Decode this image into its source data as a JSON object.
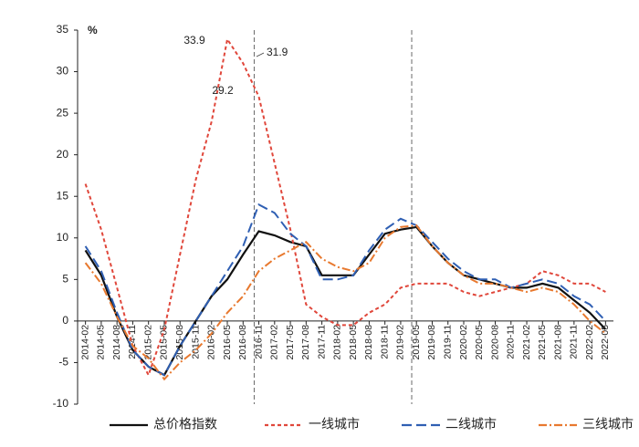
{
  "chart_data": {
    "type": "line",
    "y_unit_label": "%",
    "categories": [
      "2014-02",
      "2014-05",
      "2014-08",
      "2014-11",
      "2015-02",
      "2015-05",
      "2015-08",
      "2015-11",
      "2016-02",
      "2016-05",
      "2016-08",
      "2016-11",
      "2017-02",
      "2017-05",
      "2017-08",
      "2017-11",
      "2018-02",
      "2018-05",
      "2018-08",
      "2018-11",
      "2019-02",
      "2019-05",
      "2019-08",
      "2019-11",
      "2020-02",
      "2020-05",
      "2020-08",
      "2020-11",
      "2021-02",
      "2021-05",
      "2021-08",
      "2021-11",
      "2022-02",
      "2022-05"
    ],
    "series": [
      {
        "name": "总价格指数",
        "color": "#111111",
        "dash": "solid",
        "values": [
          8.5,
          5.5,
          0.5,
          -3.5,
          -5.5,
          -6.5,
          -3,
          0,
          3,
          5,
          8,
          10.8,
          10.3,
          9.5,
          9,
          5.5,
          5.5,
          5.5,
          8,
          10.5,
          11,
          11.3,
          9,
          7,
          5.5,
          5,
          4.5,
          4,
          4,
          4.5,
          4,
          2.5,
          1,
          -1
        ]
      },
      {
        "name": "一线城市",
        "color": "#e0473b",
        "dash": "short",
        "values": [
          16.5,
          11,
          4,
          -3,
          -6.5,
          -1,
          8,
          17,
          24,
          33.9,
          31,
          27,
          19,
          11,
          2,
          0.5,
          -0.5,
          -0.5,
          1,
          2,
          4,
          4.5,
          4.5,
          4.5,
          3.5,
          3,
          3.5,
          4,
          4.5,
          6,
          5.5,
          4.5,
          4.5,
          3.5
        ]
      },
      {
        "name": "二线城市",
        "color": "#2f5fb3",
        "dash": "long",
        "values": [
          9,
          6,
          1,
          -3.5,
          -5.5,
          -6.5,
          -3,
          0,
          3,
          6,
          9,
          14,
          13,
          10.5,
          9,
          5,
          5,
          5.5,
          8.5,
          11,
          12.3,
          11.5,
          9.5,
          7.5,
          6,
          5,
          5,
          4,
          4.5,
          5,
          4.5,
          3,
          2,
          0
        ]
      },
      {
        "name": "三线城市",
        "color": "#e8792f",
        "dash": "dashdot",
        "values": [
          7,
          4.5,
          0.5,
          -3,
          -4.5,
          -7,
          -5,
          -3.5,
          -1.5,
          1,
          3,
          6,
          7.5,
          8.5,
          9.5,
          7.5,
          6.5,
          6,
          7,
          10,
          11.3,
          11.5,
          9,
          7,
          5.5,
          4.5,
          4.5,
          4,
          3.5,
          4,
          3.5,
          2,
          0,
          -1.5
        ]
      }
    ],
    "annotations": [
      {
        "text": "33.9"
      },
      {
        "text": "29.2"
      },
      {
        "text": "31.9"
      }
    ],
    "ylim": [
      -10,
      35
    ],
    "yticks": [
      -10,
      -5,
      0,
      5,
      10,
      15,
      20,
      25,
      30,
      35
    ],
    "legend": "bottom"
  }
}
